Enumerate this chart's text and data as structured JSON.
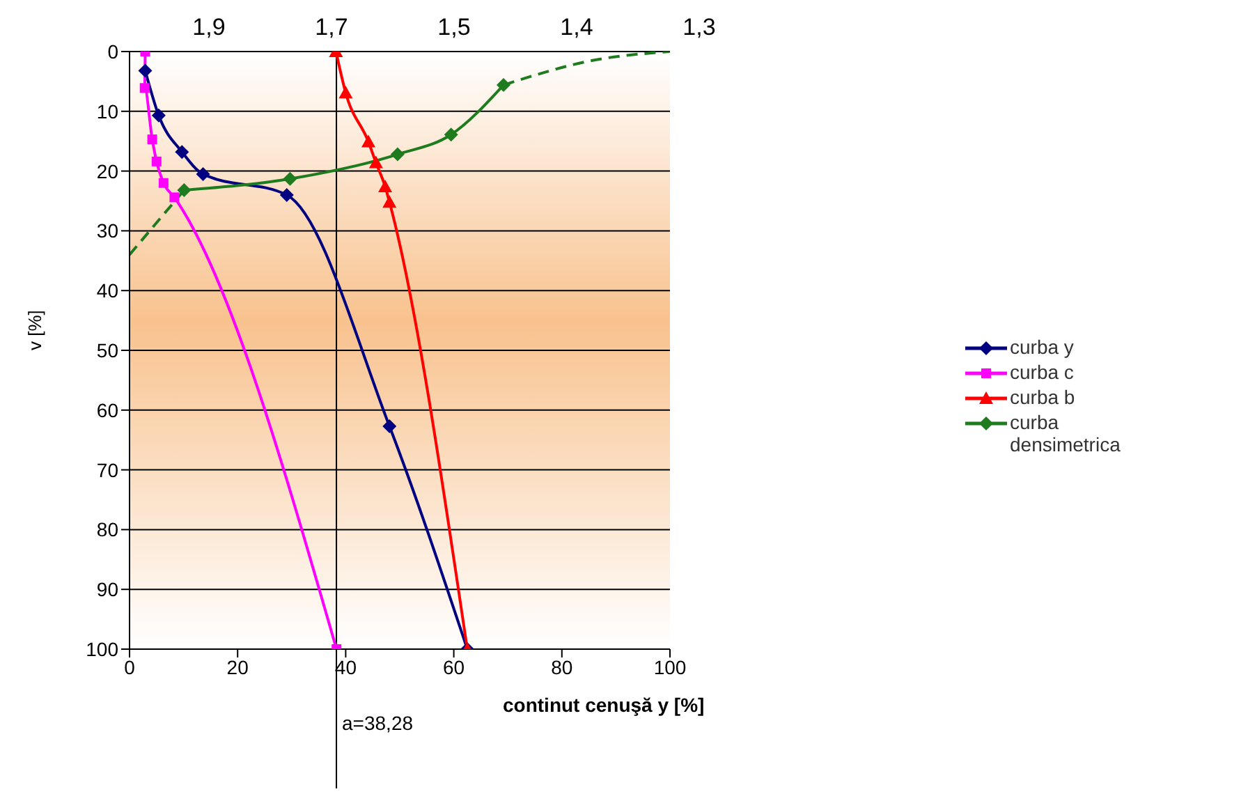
{
  "chart_data": {
    "type": "line",
    "xlabel": "continut cenuşă y [%]",
    "ylabel": "v [%]",
    "xlim": [
      0,
      100
    ],
    "xticks": [
      0,
      20,
      40,
      60,
      80,
      100
    ],
    "ylim": [
      100,
      0
    ],
    "yticks": [
      0,
      10,
      20,
      30,
      40,
      50,
      60,
      70,
      80,
      90,
      100
    ],
    "annotations": [
      "1,9",
      "1,7",
      "1,5",
      "1,4",
      "1,3"
    ],
    "grid": "y",
    "legend": "right",
    "ref_lines": [
      {
        "axis": "x",
        "value": 38.28,
        "label": "a=38,28",
        "color": "#000000"
      }
    ],
    "series": [
      {
        "name": "curba y",
        "color": "#000080",
        "marker": "diamond",
        "x": [
          2.9,
          5.4,
          9.7,
          13.6,
          29.1,
          48.1,
          62.5
        ],
        "values": [
          3.2,
          10.7,
          16.8,
          20.5,
          24,
          62.7,
          100
        ]
      },
      {
        "name": "curba c",
        "color": "#ff00ff",
        "marker": "square",
        "x": [
          2.9,
          2.8,
          4.2,
          5,
          6.3,
          8.3,
          38.3
        ],
        "values": [
          0,
          6.1,
          14.7,
          18.4,
          22,
          24.4,
          100
        ]
      },
      {
        "name": "curba b",
        "color": "#ff0000",
        "marker": "triangle",
        "x": [
          38.2,
          40,
          44.2,
          45.6,
          47.3,
          48.1,
          62.5
        ],
        "values": [
          0,
          6.9,
          15.1,
          18.6,
          22.6,
          25.2,
          100
        ]
      },
      {
        "name": "curba densimetrica",
        "color": "#1e7b1e",
        "marker": "diamond",
        "x": [
          10.1,
          29.7,
          49.6,
          59.5,
          69.2
        ],
        "values": [
          23.2,
          21.3,
          17.2,
          13.9,
          5.6
        ]
      },
      {
        "color": "#1e7b1e",
        "marker": "none",
        "line_style": "dashed",
        "x": [
          0,
          10.1
        ],
        "values": [
          34,
          23.2
        ]
      },
      {
        "color": "#1e7b1e",
        "marker": "none",
        "line_style": "dashed",
        "x": [
          69.2,
          86.2,
          100
        ],
        "values": [
          5.6,
          1.4,
          0
        ]
      }
    ]
  }
}
